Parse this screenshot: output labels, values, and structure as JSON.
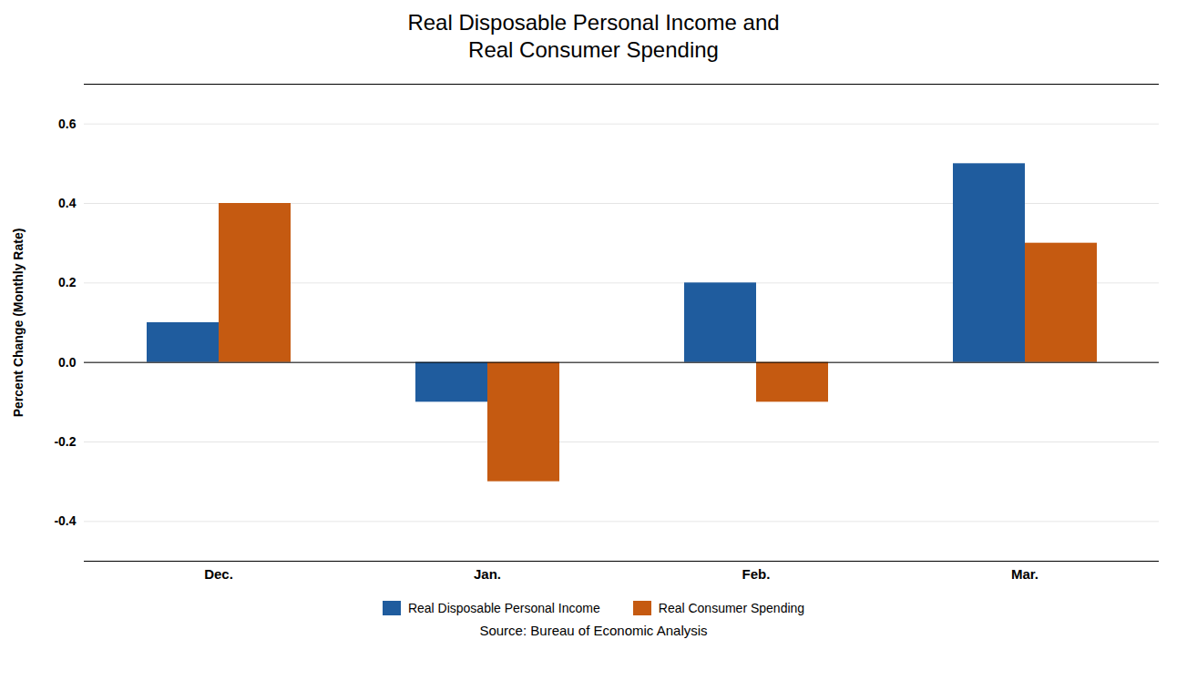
{
  "chart_data": {
    "type": "bar",
    "title": "Real Disposable Personal Income and\nReal Consumer Spending",
    "ylabel": "Percent Change (Monthly Rate)",
    "source": "Source:  Bureau of Economic Analysis",
    "categories": [
      "Dec.",
      "Jan.",
      "Feb.",
      "Mar."
    ],
    "series": [
      {
        "name": "Real Disposable Personal Income",
        "color": "#1F5C9E",
        "values": [
          0.1,
          -0.1,
          0.2,
          0.5
        ]
      },
      {
        "name": "Real Consumer Spending",
        "color": "#C55A11",
        "values": [
          0.4,
          -0.3,
          -0.1,
          0.3
        ]
      }
    ],
    "ylim": [
      -0.5,
      0.7
    ],
    "yticks": [
      -0.4,
      -0.2,
      {
        "value": 0,
        "label": "0.0"
      },
      0.2,
      0.4,
      0.6
    ],
    "grid": true,
    "legend": "bottom"
  }
}
